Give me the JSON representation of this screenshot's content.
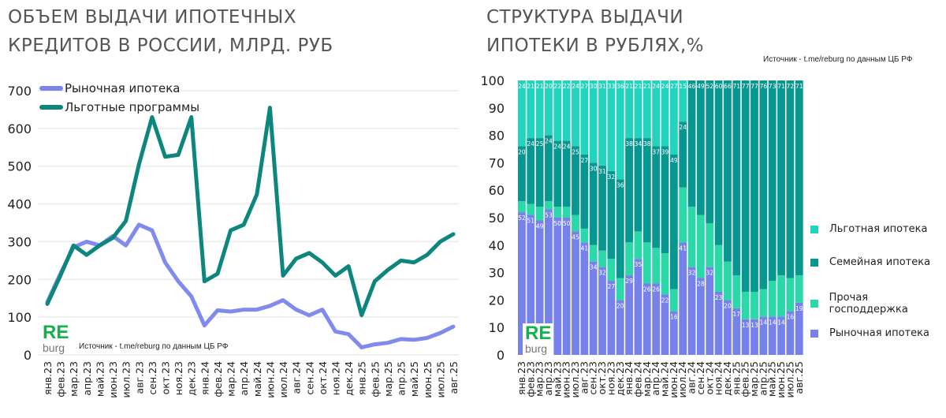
{
  "chart_data": [
    {
      "type": "line",
      "title": "ОБЪЕМ ВЫДАЧИ ИПОТЕЧНЫХ КРЕДИТОВ В РОССИИ, МЛРД. РУБ",
      "categories": [
        "янв.23",
        "фев.23",
        "мар.23",
        "апр.23",
        "май.23",
        "июн.23",
        "июл.23",
        "авг.23",
        "сен.23",
        "окт.23",
        "ноя.23",
        "дек.23",
        "янв.24",
        "фев.24",
        "мар.24",
        "апр.24",
        "май.24",
        "июн.24",
        "июл.24",
        "авг.24",
        "сен.24",
        "окт.24",
        "ноя.24",
        "дек.24",
        "янв.25",
        "фев.25",
        "мар.25",
        "апр.25",
        "май.25",
        "июн.25",
        "июл.25",
        "авг.25"
      ],
      "ylim": [
        0,
        700
      ],
      "yticks": [
        0,
        100,
        200,
        300,
        400,
        500,
        600,
        700
      ],
      "grid": true,
      "legend": "top-left",
      "series": [
        {
          "name": "Рыночная ипотека",
          "color": "#7a84ec",
          "values": [
            140,
            215,
            285,
            300,
            290,
            315,
            290,
            345,
            330,
            245,
            195,
            155,
            78,
            118,
            115,
            120,
            120,
            130,
            145,
            120,
            105,
            120,
            62,
            55,
            20,
            28,
            32,
            42,
            40,
            45,
            58,
            75
          ]
        },
        {
          "name": "Льготные программы",
          "color": "#0d877d",
          "values": [
            135,
            210,
            290,
            265,
            290,
            310,
            355,
            505,
            630,
            525,
            530,
            630,
            195,
            215,
            330,
            345,
            425,
            655,
            210,
            255,
            270,
            245,
            210,
            235,
            105,
            195,
            225,
            250,
            245,
            265,
            300,
            320
          ]
        }
      ],
      "source": "Источник  - t.me/reburg по данным  ЦБ РФ"
    },
    {
      "type": "bar",
      "stacked": true,
      "title": "СТРУКТУРА ВЫДАЧИ ИПОТЕКИ В РУБЛЯХ,%",
      "categories": [
        "янв.23",
        "фев.23",
        "мар.23",
        "апр.23",
        "май.23",
        "июн.23",
        "июл.23",
        "авг.23",
        "сен.23",
        "окт.23",
        "ноя.23",
        "дек.23",
        "янв.24",
        "фев.24",
        "мар.24",
        "апр.24",
        "май.24",
        "июн.24",
        "июл.24",
        "авг.24",
        "сен.24",
        "окт.24",
        "ноя.24",
        "дек.24",
        "янв.25",
        "фев.25",
        "мар.25",
        "апр.25",
        "май.25",
        "июн.25",
        "июл.25",
        "авг.25"
      ],
      "ylim": [
        0,
        100
      ],
      "yticks": [
        0,
        10,
        20,
        30,
        40,
        50,
        60,
        70,
        80,
        90,
        100
      ],
      "legend": "right",
      "series": [
        {
          "name": "Рыночная ипотека",
          "color": "#7682ea",
          "labeled": true,
          "values": [
            52,
            51,
            49,
            53,
            50,
            50,
            45,
            41,
            34,
            32,
            27,
            20,
            29,
            35,
            26,
            26,
            22,
            16,
            41,
            32,
            28,
            32,
            23,
            20,
            17,
            13,
            13,
            14,
            14,
            14,
            16,
            19
          ]
        },
        {
          "name": "Прочая господдержка",
          "color": "#2ad8aa",
          "labeled": false,
          "values": [
            4,
            4,
            5,
            3,
            4,
            4,
            6,
            5,
            6,
            6,
            8,
            8,
            12,
            10,
            15,
            13,
            15,
            8,
            20,
            22,
            23,
            16,
            17,
            14,
            12,
            10,
            10,
            10,
            13,
            15,
            12,
            10
          ]
        },
        {
          "name": "Семейная ипотека",
          "color": "#089690",
          "labeled": true,
          "values": [
            20,
            24,
            25,
            24,
            24,
            24,
            25,
            27,
            30,
            31,
            32,
            36,
            38,
            34,
            38,
            37,
            39,
            49,
            24,
            46,
            49,
            52,
            60,
            66,
            71,
            77,
            77,
            76,
            73,
            71,
            72,
            71
          ]
        },
        {
          "name": "Льготная ипотека",
          "color": "#22d3bd",
          "labeled": true,
          "values": [
            24,
            21,
            21,
            20,
            22,
            22,
            24,
            27,
            30,
            31,
            33,
            36,
            21,
            21,
            21,
            24,
            24,
            27,
            15,
            0,
            0,
            0,
            0,
            0,
            0,
            0,
            0,
            0,
            0,
            0,
            0,
            0
          ]
        }
      ],
      "source": "Источник  - t.me/reburg по данным  ЦБ РФ"
    }
  ],
  "logo": {
    "re": "RE",
    "burg": "burg"
  }
}
